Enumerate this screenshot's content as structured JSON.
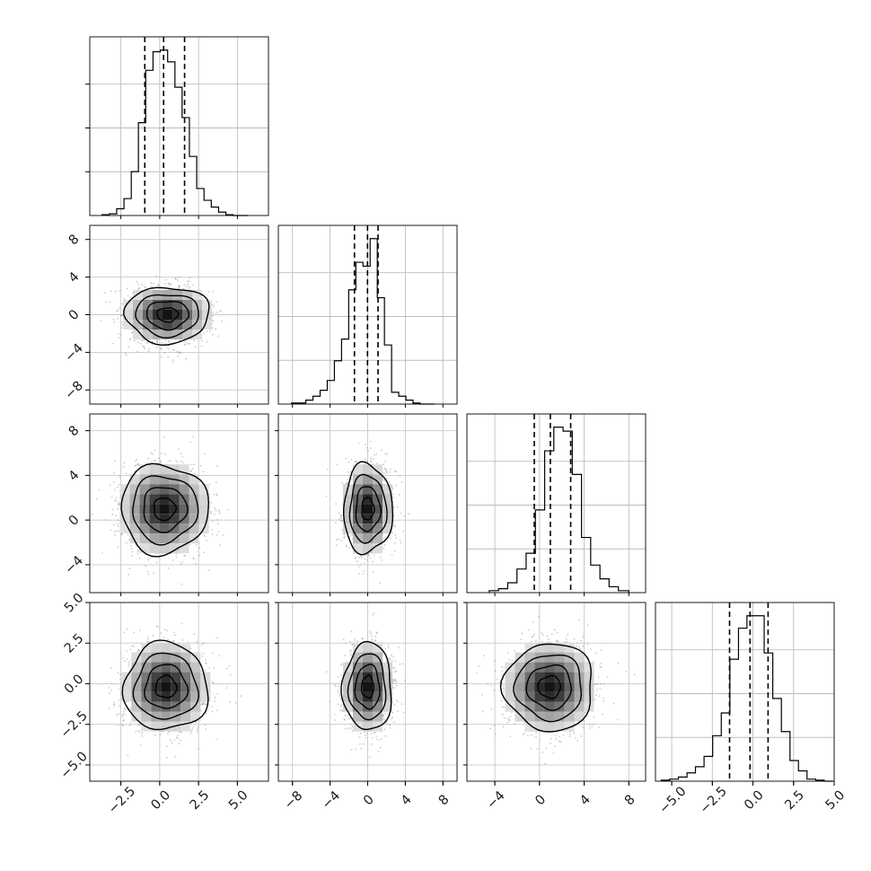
{
  "chart_data": {
    "type": "scatter",
    "layout": "corner-plot",
    "grid": true,
    "num_params": 4,
    "quantile_lines": "dashed",
    "hist_style": "step",
    "contour_color": "#000000",
    "point_color": "#8c8c8c",
    "axis_ranges": [
      [
        -4.5,
        7.0
      ],
      [
        -9.5,
        9.5
      ],
      [
        -6.5,
        9.5
      ],
      [
        -6.0,
        5.0
      ]
    ],
    "tick_labels": [
      [
        "−2.5",
        "0.0",
        "2.5",
        "5.0"
      ],
      [
        "−8",
        "−4",
        "0",
        "4",
        "8"
      ],
      [
        "−4",
        "0",
        "4",
        "8"
      ],
      [
        "−5.0",
        "−2.5",
        "0.0",
        "2.5",
        "5.0"
      ]
    ],
    "tick_values": [
      [
        -2.5,
        0.0,
        2.5,
        5.0
      ],
      [
        -8,
        -4,
        0,
        4,
        8
      ],
      [
        -4,
        0,
        4,
        8
      ],
      [
        -5.0,
        -2.5,
        0.0,
        2.5,
        5.0
      ]
    ],
    "marginals": [
      {
        "param": 1,
        "bins": [
          -3.71,
          -3.24,
          -2.77,
          -2.3,
          -1.83,
          -1.37,
          -0.9,
          -0.43,
          0.04,
          0.51,
          0.98,
          1.44,
          1.91,
          2.38,
          2.85,
          3.32,
          3.79,
          4.26,
          4.72,
          5.19,
          5.66
        ],
        "counts": [
          0.5,
          1,
          4,
          10,
          26,
          55,
          86,
          97,
          98,
          91,
          76,
          58,
          35,
          16,
          9,
          5,
          2,
          0.5,
          0,
          0
        ],
        "quantiles": [
          -0.96,
          0.25,
          1.6
        ]
      },
      {
        "param": 2,
        "bins": [
          -8.1,
          -7.34,
          -6.58,
          -5.82,
          -5.06,
          -4.3,
          -3.54,
          -2.78,
          -2.02,
          -1.26,
          -0.5,
          0.26,
          1.02,
          1.78,
          2.54,
          3.3,
          4.06,
          4.82,
          5.58,
          6.34,
          7.1
        ],
        "counts": [
          0.5,
          0.5,
          2,
          4,
          7,
          12,
          22,
          33,
          58,
          72,
          70,
          84,
          54,
          30,
          6,
          4,
          2,
          0.5,
          0,
          0
        ],
        "quantiles": [
          -1.41,
          -0.02,
          1.1
        ]
      },
      {
        "param": 3,
        "bins": [
          -4.5,
          -3.67,
          -2.85,
          -2.02,
          -1.2,
          -0.37,
          0.46,
          1.28,
          2.11,
          2.93,
          3.76,
          4.58,
          5.41,
          6.23,
          7.06,
          8.0
        ],
        "counts": [
          1,
          2,
          5,
          12,
          20,
          42,
          72,
          84,
          82,
          60,
          28,
          14,
          7,
          3,
          1
        ],
        "quantiles": [
          -0.47,
          0.97,
          2.79
        ]
      },
      {
        "param": 4,
        "bins": [
          -5.65,
          -5.12,
          -4.59,
          -4.06,
          -3.54,
          -3.01,
          -2.48,
          -1.95,
          -1.42,
          -0.89,
          -0.37,
          0.16,
          0.69,
          1.22,
          1.75,
          2.28,
          2.8,
          3.33,
          3.86,
          4.39,
          4.92
        ],
        "counts": [
          0.5,
          1,
          2,
          4,
          7,
          12,
          22,
          33,
          59,
          74,
          80,
          80,
          62,
          40,
          24,
          10,
          5,
          1,
          0.5,
          0
        ],
        "quantiles": [
          -1.44,
          -0.18,
          0.93
        ]
      }
    ],
    "joint": [
      {
        "x_param": 1,
        "y_param": 2,
        "center": [
          0.5,
          0.0
        ],
        "sigma": [
          1.35,
          1.5
        ],
        "contours_sigma": [
          0.5,
          1.0,
          1.5,
          2.0
        ]
      },
      {
        "x_param": 1,
        "y_param": 3,
        "center": [
          0.3,
          1.0
        ],
        "sigma": [
          1.4,
          2.0
        ],
        "contours_sigma": [
          0.5,
          1.0,
          1.5,
          2.0
        ]
      },
      {
        "x_param": 2,
        "y_param": 3,
        "center": [
          0.0,
          1.0
        ],
        "sigma": [
          1.3,
          2.0
        ],
        "contours_sigma": [
          0.5,
          1.0,
          1.5,
          2.0
        ]
      },
      {
        "x_param": 1,
        "y_param": 4,
        "center": [
          0.4,
          -0.2
        ],
        "sigma": [
          1.35,
          1.35
        ],
        "contours_sigma": [
          0.5,
          1.0,
          1.5,
          2.0
        ]
      },
      {
        "x_param": 2,
        "y_param": 4,
        "center": [
          0.0,
          -0.2
        ],
        "sigma": [
          1.3,
          1.35
        ],
        "contours_sigma": [
          0.5,
          1.0,
          1.5,
          2.0
        ]
      },
      {
        "x_param": 3,
        "y_param": 4,
        "center": [
          0.9,
          -0.2
        ],
        "sigma": [
          2.0,
          1.35
        ],
        "contours_sigma": [
          0.5,
          1.0,
          1.5,
          2.0
        ]
      }
    ]
  }
}
